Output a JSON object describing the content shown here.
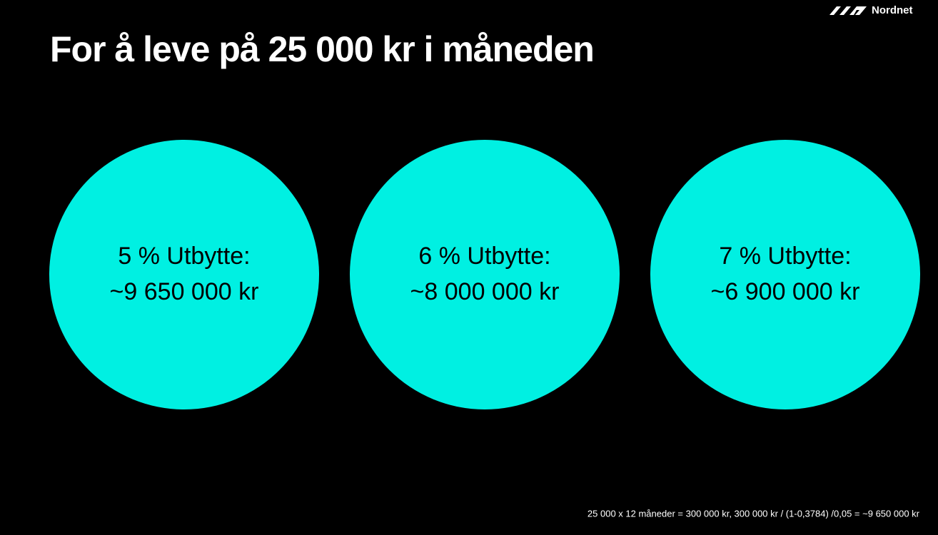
{
  "logo": "Nordnet",
  "title": "For å leve på 25 000 kr i måneden",
  "circles": [
    {
      "line1": "5 % Utbytte:",
      "line2": "~9 650 000 kr"
    },
    {
      "line1": "6 % Utbytte:",
      "line2": "~8 000 000 kr"
    },
    {
      "line1": "7 % Utbytte:",
      "line2": "~6 900 000 kr"
    }
  ],
  "footnote": "25 000 x 12 måneder = 300 000 kr, 300 000 kr / (1-0,3784) /0,05 = ~9 650 000 kr"
}
